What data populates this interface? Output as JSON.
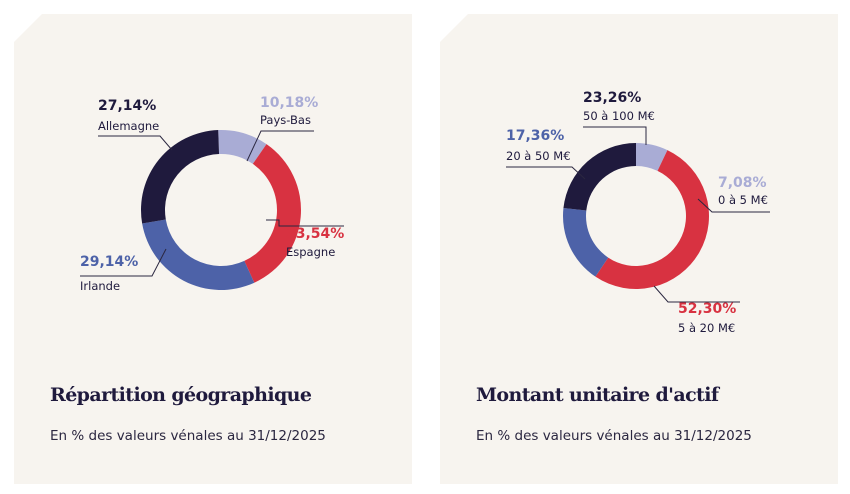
{
  "colors": {
    "navy": "#1f1a3d",
    "blue": "#4d62a8",
    "light": "#a9acd5",
    "red": "#d83241",
    "bg": "#f7f4ef"
  },
  "chart_data": [
    {
      "type": "pie",
      "title": "Répartition géographique",
      "subtitle": "En % des valeurs vénales au 31/12/2025",
      "unit": "%",
      "slices": [
        {
          "label": "Pays-Bas",
          "value": 10.18,
          "display": "10,18%",
          "color": "#a9acd5"
        },
        {
          "label": "Espagne",
          "value": 33.54,
          "display": "33,54%",
          "color": "#d83241"
        },
        {
          "label": "Irlande",
          "value": 29.14,
          "display": "29,14%",
          "color": "#4d62a8"
        },
        {
          "label": "Allemagne",
          "value": 27.14,
          "display": "27,14%",
          "color": "#1f1a3d"
        }
      ]
    },
    {
      "type": "pie",
      "title": "Montant unitaire d'actif",
      "subtitle": "En % des valeurs vénales au 31/12/2025",
      "unit": "%",
      "slices": [
        {
          "label": "0 à 5 M€",
          "value": 7.08,
          "display": "7,08%",
          "color": "#a9acd5"
        },
        {
          "label": "5 à 20 M€",
          "value": 52.3,
          "display": "52,30%",
          "color": "#d83241"
        },
        {
          "label": "20 à 50 M€",
          "value": 17.36,
          "display": "17,36%",
          "color": "#4d62a8"
        },
        {
          "label": "50 à 100 M€",
          "value": 23.26,
          "display": "23,26%",
          "color": "#1f1a3d"
        }
      ]
    }
  ]
}
